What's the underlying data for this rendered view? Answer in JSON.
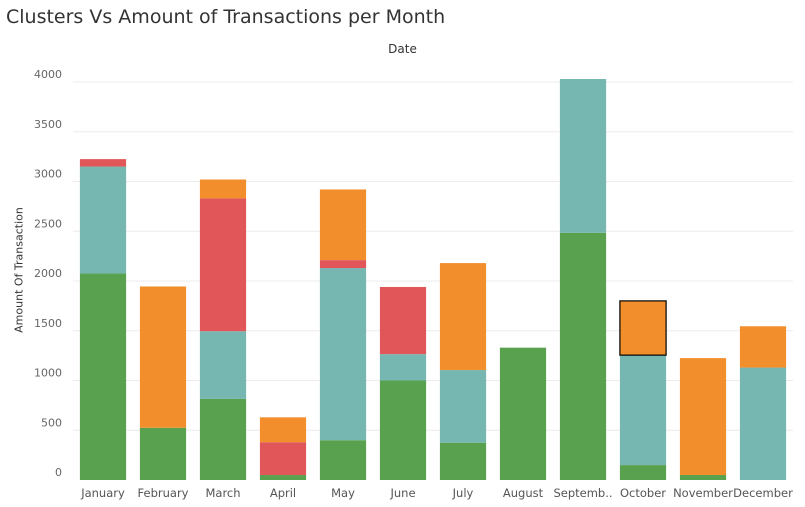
{
  "chart_data": {
    "type": "bar",
    "stacked": true,
    "title": "Clusters Vs Amount of Transactions per Month",
    "column_header": "Date",
    "ylabel": "Amount Of Transaction",
    "xlabel": "",
    "ylim": [
      0,
      4100
    ],
    "yticks": [
      0,
      500,
      1000,
      1500,
      2000,
      2500,
      3000,
      3500,
      4000
    ],
    "grid": true,
    "categories": [
      "January",
      "February",
      "March",
      "April",
      "May",
      "June",
      "July",
      "August",
      "Septemb..",
      "October",
      "November",
      "December"
    ],
    "series": [
      {
        "color": "#59a14f",
        "values": [
          2075,
          525,
          815,
          50,
          400,
          1000,
          375,
          1330,
          2485,
          150,
          50,
          0
        ]
      },
      {
        "color": "#76b7b2",
        "values": [
          1075,
          0,
          680,
          0,
          1730,
          265,
          730,
          0,
          1545,
          1105,
          0,
          1130
        ]
      },
      {
        "color": "#e15759",
        "values": [
          75,
          0,
          1335,
          330,
          80,
          675,
          0,
          0,
          0,
          0,
          0,
          0
        ]
      },
      {
        "color": "#f28e2b",
        "values": [
          0,
          1420,
          190,
          250,
          710,
          0,
          1075,
          0,
          0,
          545,
          1175,
          415
        ]
      }
    ],
    "highlighted": {
      "category": "October",
      "series_index": 3
    }
  }
}
